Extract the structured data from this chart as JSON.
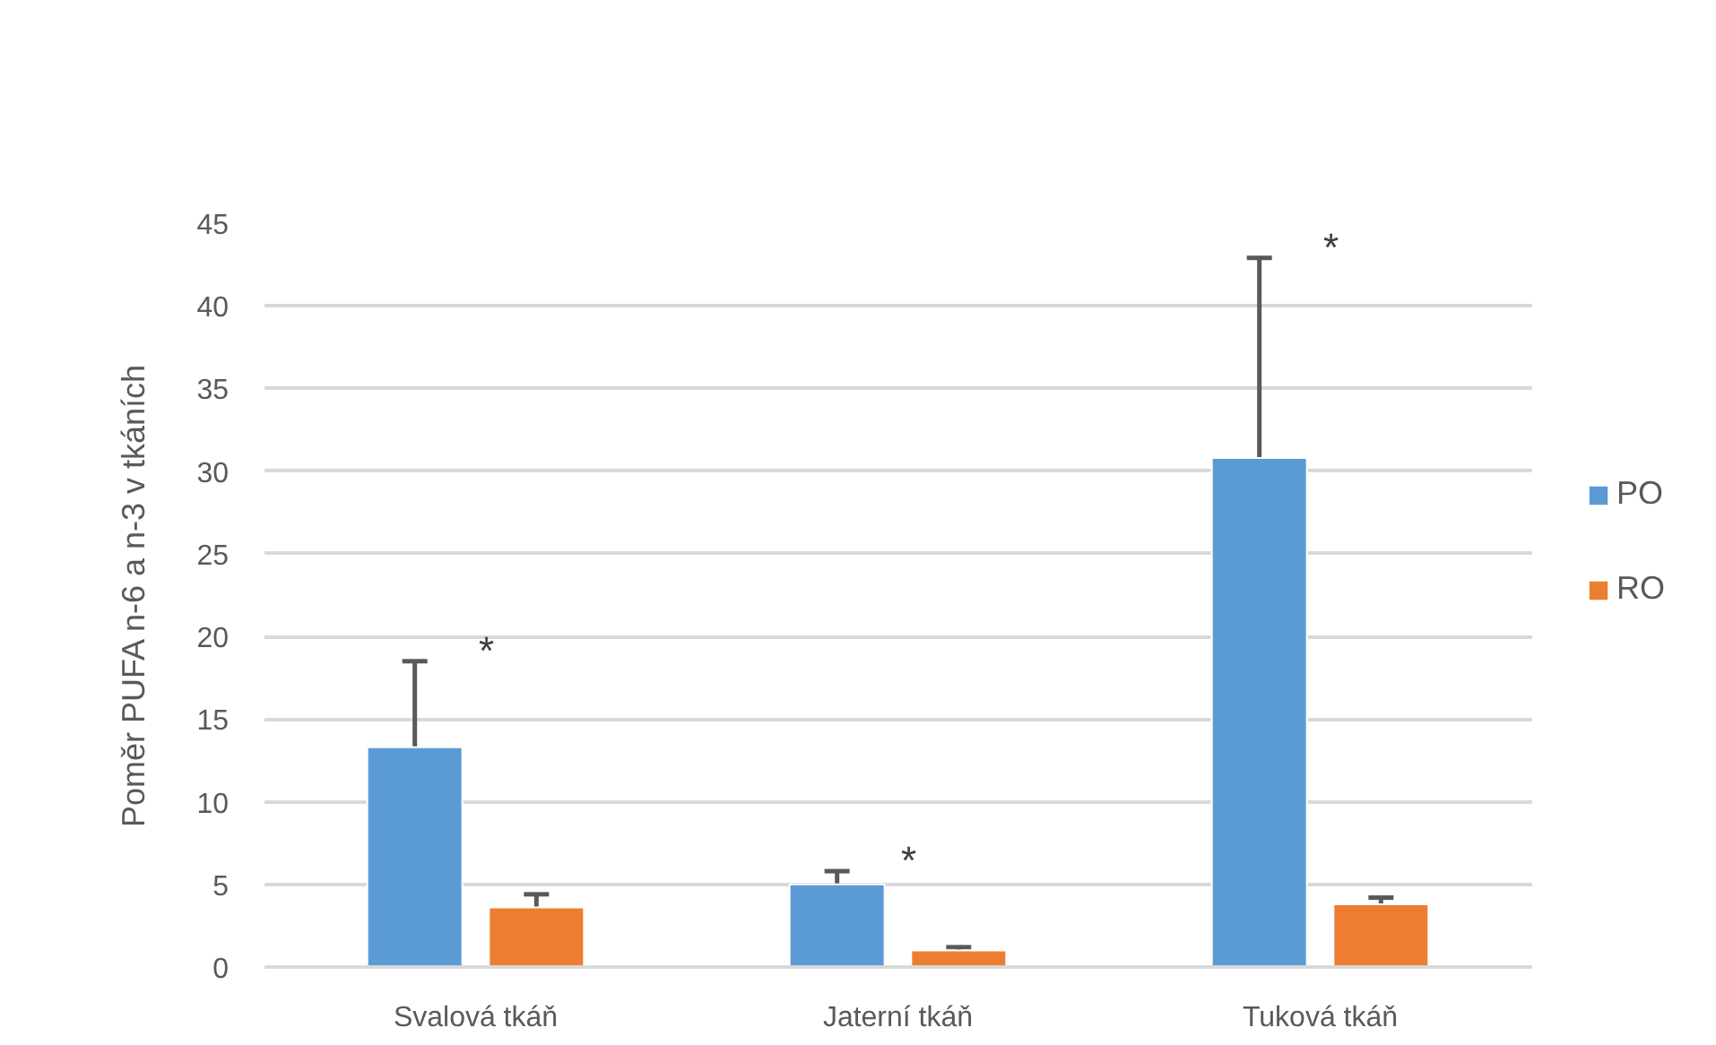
{
  "chart_data": {
    "type": "bar",
    "ylabel": "Poměr PUFA n-6 a n-3 v tkáních",
    "categories": [
      "Svalová tkáň",
      "Jaterní tkáň",
      "Tuková tkáň"
    ],
    "series": [
      {
        "name": "PO",
        "color": "#5b9bd5",
        "values": [
          13.3,
          5.0,
          30.8
        ],
        "errors": [
          5.2,
          0.8,
          12.1
        ]
      },
      {
        "name": "RO",
        "color": "#ed7d31",
        "values": [
          3.6,
          1.0,
          3.8
        ],
        "errors": [
          0.8,
          0.2,
          0.4
        ]
      }
    ],
    "ylim": [
      0,
      45
    ],
    "yticks": [
      0,
      5,
      10,
      15,
      20,
      25,
      30,
      35,
      40,
      45
    ],
    "grid": "y",
    "legend": "right",
    "annotations": [
      "*",
      "*",
      "*"
    ]
  }
}
